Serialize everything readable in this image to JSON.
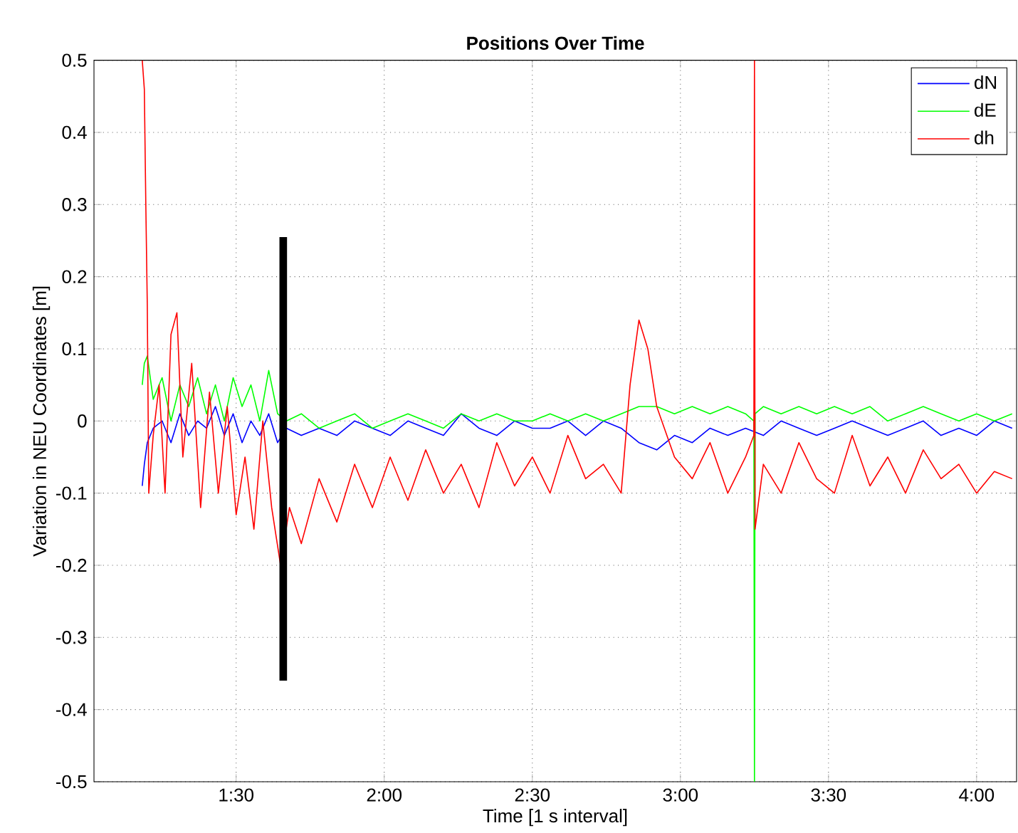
{
  "chart_data": {
    "type": "line",
    "title": "Positions Over Time",
    "xlabel": "Time [1 s interval]",
    "ylabel": "Variation in NEU Coordinates [m]",
    "xlim": [
      1.02,
      4.135
    ],
    "ylim": [
      -0.5,
      0.5
    ],
    "xticks": [
      {
        "value": 1.5,
        "label": "1:30"
      },
      {
        "value": 2.0,
        "label": "2:00"
      },
      {
        "value": 2.5,
        "label": "2:30"
      },
      {
        "value": 3.0,
        "label": "3:00"
      },
      {
        "value": 3.5,
        "label": "3:30"
      },
      {
        "value": 4.0,
        "label": "4:00"
      }
    ],
    "yticks": [
      -0.5,
      -0.4,
      -0.3,
      -0.2,
      -0.1,
      0,
      0.1,
      0.2,
      0.3,
      0.4,
      0.5
    ],
    "grid": true,
    "legend": "top right",
    "series": [
      {
        "name": "dN",
        "color": "#0000ff",
        "x": [
          1.183,
          1.19,
          1.2,
          1.22,
          1.25,
          1.28,
          1.31,
          1.34,
          1.37,
          1.4,
          1.43,
          1.46,
          1.49,
          1.52,
          1.55,
          1.58,
          1.61,
          1.64,
          1.67,
          1.72,
          1.78,
          1.84,
          1.9,
          1.96,
          2.02,
          2.08,
          2.14,
          2.2,
          2.26,
          2.32,
          2.38,
          2.44,
          2.5,
          2.56,
          2.62,
          2.68,
          2.74,
          2.8,
          2.86,
          2.92,
          2.98,
          3.04,
          3.1,
          3.16,
          3.22,
          3.28,
          3.34,
          3.4,
          3.46,
          3.52,
          3.58,
          3.64,
          3.7,
          3.76,
          3.82,
          3.88,
          3.94,
          4.0,
          4.06,
          4.12
        ],
        "values": [
          -0.09,
          -0.06,
          -0.03,
          -0.01,
          0.0,
          -0.03,
          0.01,
          -0.02,
          0.0,
          -0.01,
          0.02,
          -0.02,
          0.01,
          -0.03,
          0.0,
          -0.02,
          0.01,
          -0.03,
          -0.01,
          -0.02,
          -0.01,
          -0.02,
          0.0,
          -0.01,
          -0.02,
          0.0,
          -0.01,
          -0.02,
          0.01,
          -0.01,
          -0.02,
          0.0,
          -0.01,
          -0.01,
          0.0,
          -0.02,
          0.0,
          -0.01,
          -0.03,
          -0.04,
          -0.02,
          -0.03,
          -0.01,
          -0.02,
          -0.01,
          -0.02,
          0.0,
          -0.01,
          -0.02,
          -0.01,
          0.0,
          -0.01,
          -0.02,
          -0.01,
          0.0,
          -0.02,
          -0.01,
          -0.02,
          0.0,
          -0.01
        ]
      },
      {
        "name": "dE",
        "color": "#00ff00",
        "x": [
          1.183,
          1.19,
          1.2,
          1.22,
          1.25,
          1.28,
          1.31,
          1.34,
          1.37,
          1.4,
          1.43,
          1.46,
          1.49,
          1.52,
          1.55,
          1.58,
          1.61,
          1.64,
          1.67,
          1.72,
          1.78,
          1.84,
          1.9,
          1.96,
          2.02,
          2.08,
          2.14,
          2.2,
          2.26,
          2.32,
          2.38,
          2.44,
          2.5,
          2.56,
          2.62,
          2.68,
          2.74,
          2.8,
          2.86,
          2.92,
          2.98,
          3.04,
          3.1,
          3.16,
          3.22,
          3.248,
          3.25,
          3.252,
          3.28,
          3.34,
          3.4,
          3.46,
          3.52,
          3.58,
          3.64,
          3.7,
          3.76,
          3.82,
          3.88,
          3.94,
          4.0,
          4.06,
          4.12
        ],
        "values": [
          0.05,
          0.08,
          0.09,
          0.03,
          0.06,
          0.0,
          0.05,
          0.02,
          0.06,
          0.01,
          0.05,
          0.0,
          0.06,
          0.02,
          0.05,
          0.0,
          0.07,
          0.01,
          0.0,
          0.01,
          -0.01,
          0.0,
          0.01,
          -0.01,
          0.0,
          0.01,
          0.0,
          -0.01,
          0.01,
          0.0,
          0.01,
          0.0,
          0.0,
          0.01,
          0.0,
          0.01,
          0.0,
          0.01,
          0.02,
          0.02,
          0.01,
          0.02,
          0.01,
          0.02,
          0.01,
          0.0,
          -0.5,
          0.01,
          0.02,
          0.01,
          0.02,
          0.01,
          0.02,
          0.01,
          0.02,
          0.0,
          0.01,
          0.02,
          0.01,
          0.0,
          0.01,
          0.0,
          0.01
        ]
      },
      {
        "name": "dh",
        "color": "#ff0000",
        "x": [
          1.183,
          1.19,
          1.195,
          1.2,
          1.205,
          1.22,
          1.24,
          1.26,
          1.28,
          1.3,
          1.32,
          1.35,
          1.38,
          1.41,
          1.44,
          1.47,
          1.5,
          1.53,
          1.56,
          1.59,
          1.62,
          1.65,
          1.68,
          1.72,
          1.78,
          1.84,
          1.9,
          1.96,
          2.02,
          2.08,
          2.14,
          2.2,
          2.26,
          2.32,
          2.38,
          2.44,
          2.5,
          2.56,
          2.62,
          2.68,
          2.74,
          2.8,
          2.83,
          2.86,
          2.89,
          2.92,
          2.98,
          3.04,
          3.1,
          3.16,
          3.22,
          3.248,
          3.25,
          3.252,
          3.28,
          3.34,
          3.4,
          3.46,
          3.52,
          3.58,
          3.64,
          3.7,
          3.76,
          3.82,
          3.88,
          3.94,
          4.0,
          4.06,
          4.12
        ],
        "values": [
          0.5,
          0.46,
          0.3,
          0.16,
          -0.1,
          -0.02,
          0.05,
          -0.1,
          0.12,
          0.15,
          -0.05,
          0.08,
          -0.12,
          0.04,
          -0.1,
          0.02,
          -0.13,
          -0.05,
          -0.15,
          0.0,
          -0.12,
          -0.2,
          -0.12,
          -0.17,
          -0.08,
          -0.14,
          -0.06,
          -0.12,
          -0.05,
          -0.11,
          -0.04,
          -0.1,
          -0.06,
          -0.12,
          -0.03,
          -0.09,
          -0.05,
          -0.1,
          -0.02,
          -0.08,
          -0.06,
          -0.1,
          0.05,
          0.14,
          0.1,
          0.02,
          -0.05,
          -0.08,
          -0.03,
          -0.1,
          -0.05,
          -0.02,
          0.5,
          -0.15,
          -0.06,
          -0.1,
          -0.03,
          -0.08,
          -0.1,
          -0.02,
          -0.09,
          -0.05,
          -0.1,
          -0.04,
          -0.08,
          -0.06,
          -0.1,
          -0.07,
          -0.08
        ]
      },
      {
        "color": "#000000",
        "x": [
          1.659,
          1.659
        ],
        "values": [
          0.255,
          -0.36
        ]
      }
    ]
  }
}
